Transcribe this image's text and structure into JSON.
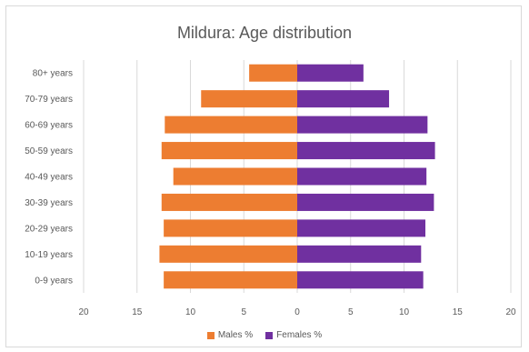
{
  "chart_data": {
    "type": "bar",
    "orientation": "horizontal",
    "title": "Mildura: Age distribution",
    "categories": [
      "80+ years",
      "70-79 years",
      "60-69 years",
      "50-59 years",
      "40-49 years",
      "30-39 years",
      "20-29 years",
      "10-19 years",
      "0-9 years"
    ],
    "series": [
      {
        "name": "Males %",
        "color": "#ED7D31",
        "values": [
          4.5,
          9.0,
          12.4,
          12.7,
          11.6,
          12.7,
          12.5,
          12.9,
          12.5
        ]
      },
      {
        "name": "Females %",
        "color": "#7030A0",
        "values": [
          6.2,
          8.6,
          12.2,
          12.9,
          12.1,
          12.8,
          12.0,
          11.6,
          11.8
        ]
      }
    ],
    "xlim": [
      -20,
      20
    ],
    "x_ticks": [
      "20",
      "15",
      "10",
      "5",
      "0",
      "5",
      "10",
      "15",
      "20"
    ],
    "grid": true,
    "legend_position": "bottom"
  }
}
